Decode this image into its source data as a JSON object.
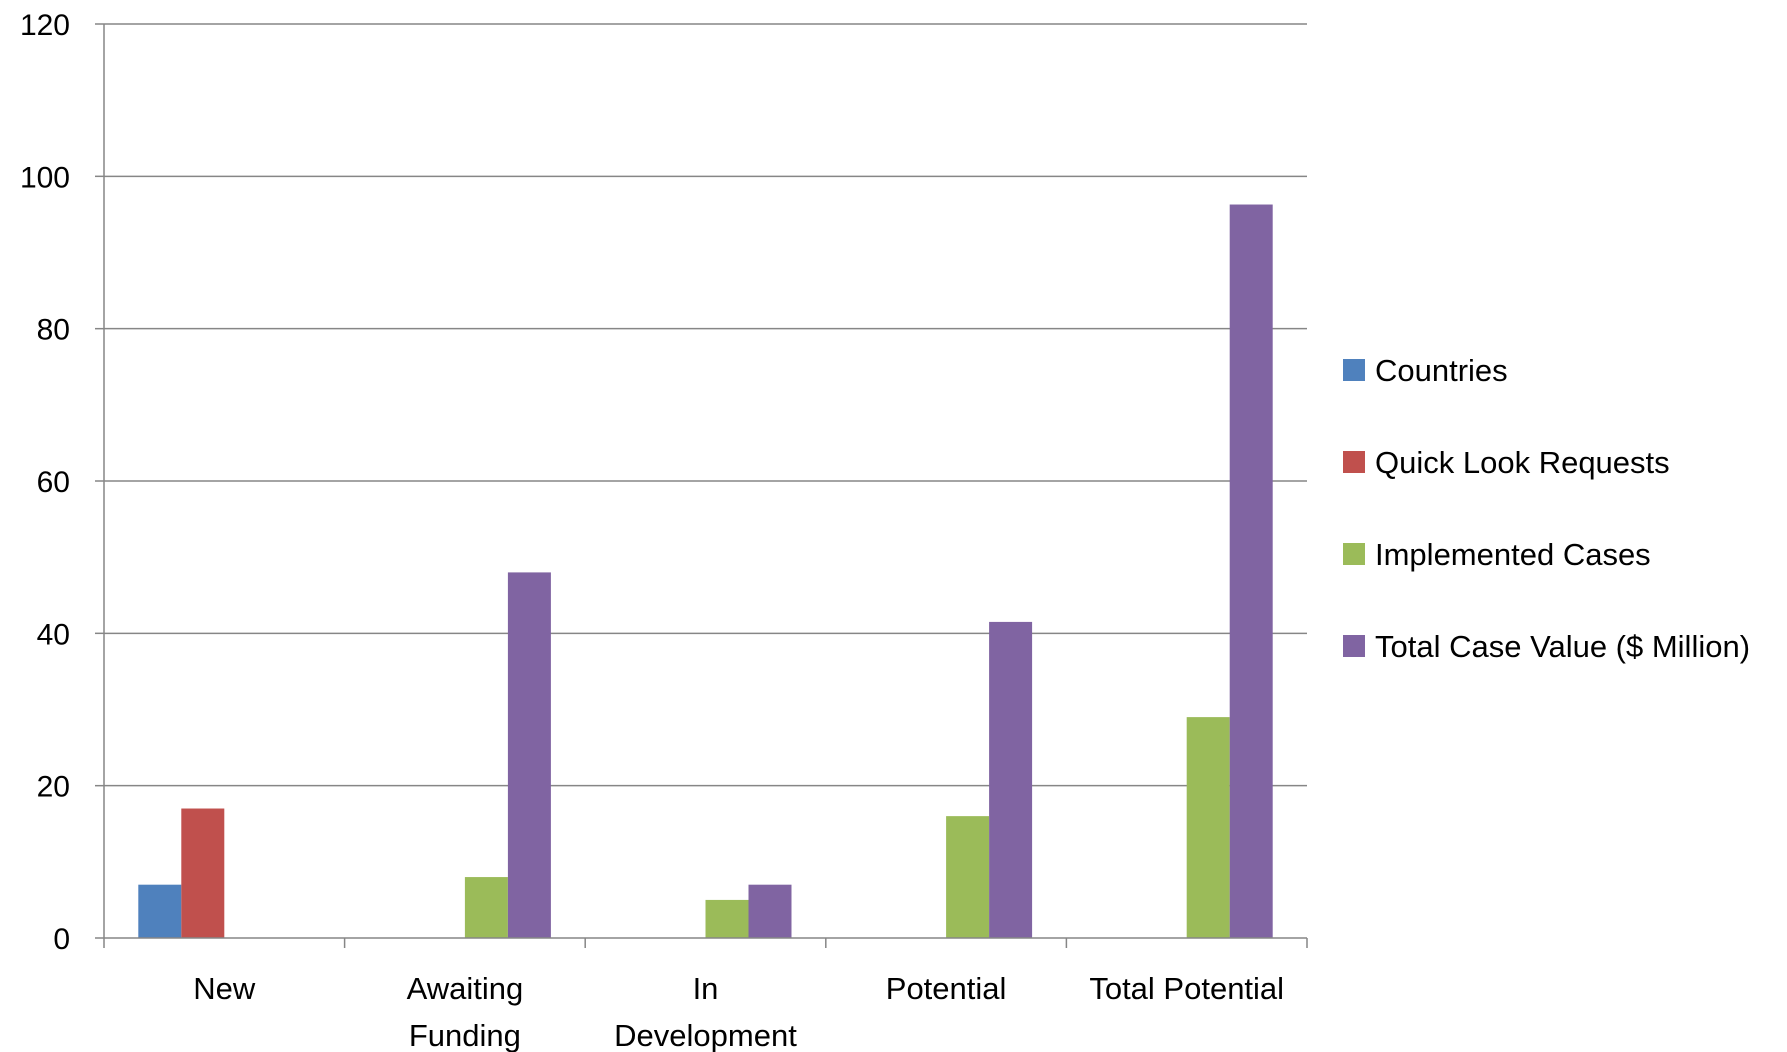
{
  "chart_data": {
    "type": "bar",
    "title": "",
    "xlabel": "",
    "ylabel": "",
    "ylim": [
      0,
      120
    ],
    "yticks": [
      0,
      20,
      40,
      60,
      80,
      100,
      120
    ],
    "grid": true,
    "legend_position": "right",
    "categories": [
      [
        "New"
      ],
      [
        "Awaiting",
        "Funding"
      ],
      [
        "In",
        "Development"
      ],
      [
        "Potential"
      ],
      [
        "Total Potential"
      ]
    ],
    "series": [
      {
        "name": "Countries",
        "color": "#4F81BD",
        "values": [
          7,
          0,
          0,
          0,
          0
        ]
      },
      {
        "name": "Quick Look Requests",
        "color": "#C0504D",
        "values": [
          17,
          0,
          0,
          0,
          0
        ]
      },
      {
        "name": "Implemented Cases",
        "color": "#9BBB59",
        "values": [
          0,
          8,
          5,
          16,
          29
        ]
      },
      {
        "name": "Total Case Value ($ Million)",
        "color": "#8064A2",
        "values": [
          0,
          48,
          7,
          41.5,
          96.3
        ]
      }
    ]
  }
}
